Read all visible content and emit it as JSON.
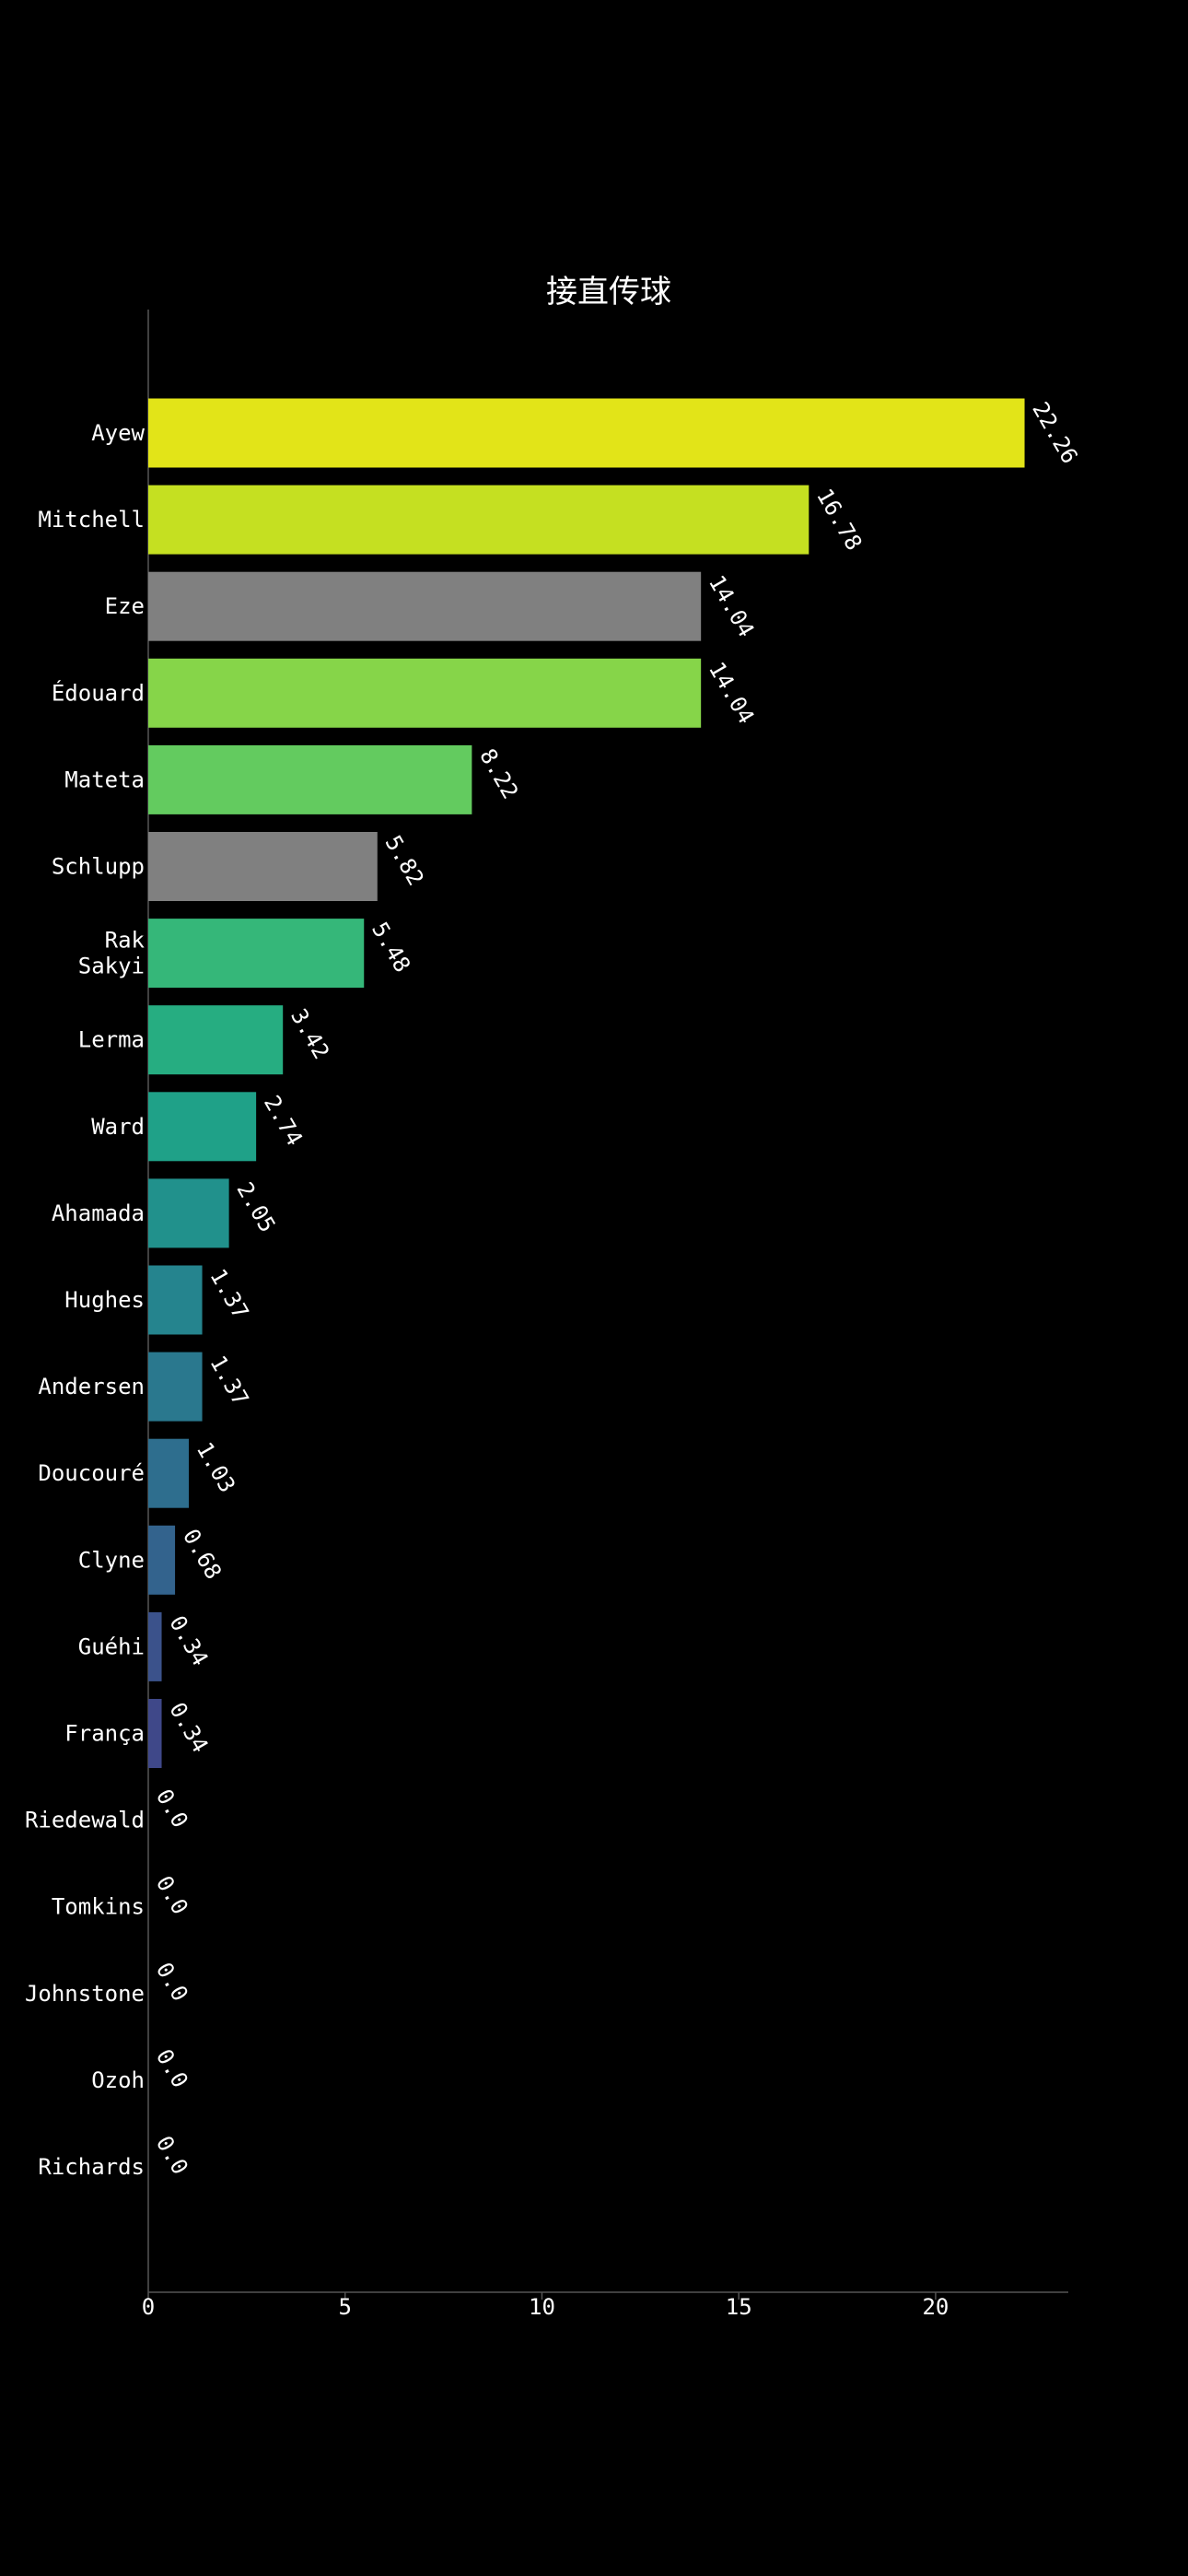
{
  "chart_data": {
    "type": "bar",
    "orientation": "horizontal",
    "title": "接直传球",
    "xlabel": "",
    "ylabel": "",
    "xlim": [
      0,
      23.37
    ],
    "xticks": [
      0,
      5,
      10,
      15,
      20
    ],
    "grid": false,
    "legend": "none",
    "background": "#000000",
    "categories": [
      "Ayew",
      "Mitchell",
      "Eze",
      "Édouard",
      "Mateta",
      "Schlupp",
      "Rak\nSakyi",
      "Lerma",
      "Ward",
      "Ahamada",
      "Hughes",
      "Andersen",
      "Doucouré",
      "Clyne",
      "Guéhi",
      "França",
      "Riedewald",
      "Tomkins",
      "Johnstone",
      "Ozoh",
      "Richards"
    ],
    "values": [
      22.26,
      16.78,
      14.04,
      14.04,
      8.22,
      5.82,
      5.48,
      3.42,
      2.74,
      2.05,
      1.37,
      1.37,
      1.03,
      0.68,
      0.34,
      0.34,
      0.0,
      0.0,
      0.0,
      0.0,
      0.0
    ],
    "value_labels": [
      "22.26",
      "16.78",
      "14.04",
      "14.04",
      "8.22",
      "5.82",
      "5.48",
      "3.42",
      "2.74",
      "2.05",
      "1.37",
      "1.37",
      "1.03",
      "0.68",
      "0.34",
      "0.34",
      "0.0",
      "0.0",
      "0.0",
      "0.0",
      "0.0"
    ],
    "colors": [
      "#e2e418",
      "#c5e021",
      "#808080",
      "#86d549",
      "#63cb5f",
      "#808080",
      "#35b779",
      "#26ad81",
      "#1fa188",
      "#21918c",
      "#25848e",
      "#2a788e",
      "#2e6e8e",
      "#33638d",
      "#3b528b",
      "#3f4889",
      "#443a83",
      "#472c7a",
      "#481c6e",
      "#481467",
      "#440154"
    ],
    "axis_color": "#555555"
  }
}
